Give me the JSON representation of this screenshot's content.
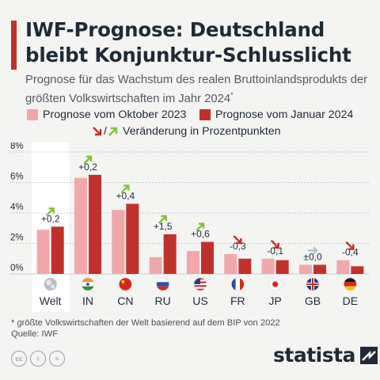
{
  "header": {
    "title": "IWF-Prognose: Deutschland bleibt Konjunktur-Schlusslicht",
    "subtitle": "Prognose für das Wachstum des realen Bruttoinlands­produkts der größten Volkswirtschaften im Jahr 2024",
    "subtitle_mark": "*"
  },
  "legend": {
    "oct_label": "Prognose vom Oktober 2023",
    "jan_label": "Prognose vom Januar 2024",
    "change_separator": "/",
    "change_label": "Veränderung in Prozentpunkten"
  },
  "colors": {
    "oct": "#f2a7ab",
    "jan": "#c0312b",
    "up": "#7fc23a",
    "down": "#c0312b",
    "neutral": "#a9bccf"
  },
  "chart_data": {
    "type": "bar",
    "categories": [
      "Welt",
      "IN",
      "CN",
      "RU",
      "US",
      "FR",
      "JP",
      "GB",
      "DE"
    ],
    "series": [
      {
        "name": "Prognose vom Oktober 2023",
        "values": [
          2.9,
          6.3,
          4.2,
          1.1,
          1.5,
          1.3,
          1.0,
          0.6,
          0.9
        ]
      },
      {
        "name": "Prognose vom Januar 2024",
        "values": [
          3.1,
          6.5,
          4.6,
          2.6,
          2.1,
          1.0,
          0.9,
          0.6,
          0.5
        ]
      }
    ],
    "change_labels": [
      "+0,2",
      "+0,2",
      "+0,4",
      "+1,5",
      "+0,6",
      "-0,3",
      "-0,1",
      "±0,0",
      "-0,4"
    ],
    "change_direction": [
      "up",
      "up",
      "up",
      "up",
      "up",
      "down",
      "down",
      "neutral",
      "down"
    ],
    "country_icons": [
      "globe-icon",
      "flag-india-icon",
      "flag-china-icon",
      "flag-russia-icon",
      "flag-usa-icon",
      "flag-france-icon",
      "flag-japan-icon",
      "flag-uk-icon",
      "flag-germany-icon"
    ],
    "yticks": [
      "0%",
      "2%",
      "4%",
      "6%",
      "8%"
    ],
    "ylim": [
      0,
      8
    ],
    "grid": true
  },
  "footer": {
    "footnote": "* größte Volkswirtschaften der Welt basierend auf dem BIP von 2022",
    "source": "Quelle: IWF",
    "brand": "statista"
  }
}
